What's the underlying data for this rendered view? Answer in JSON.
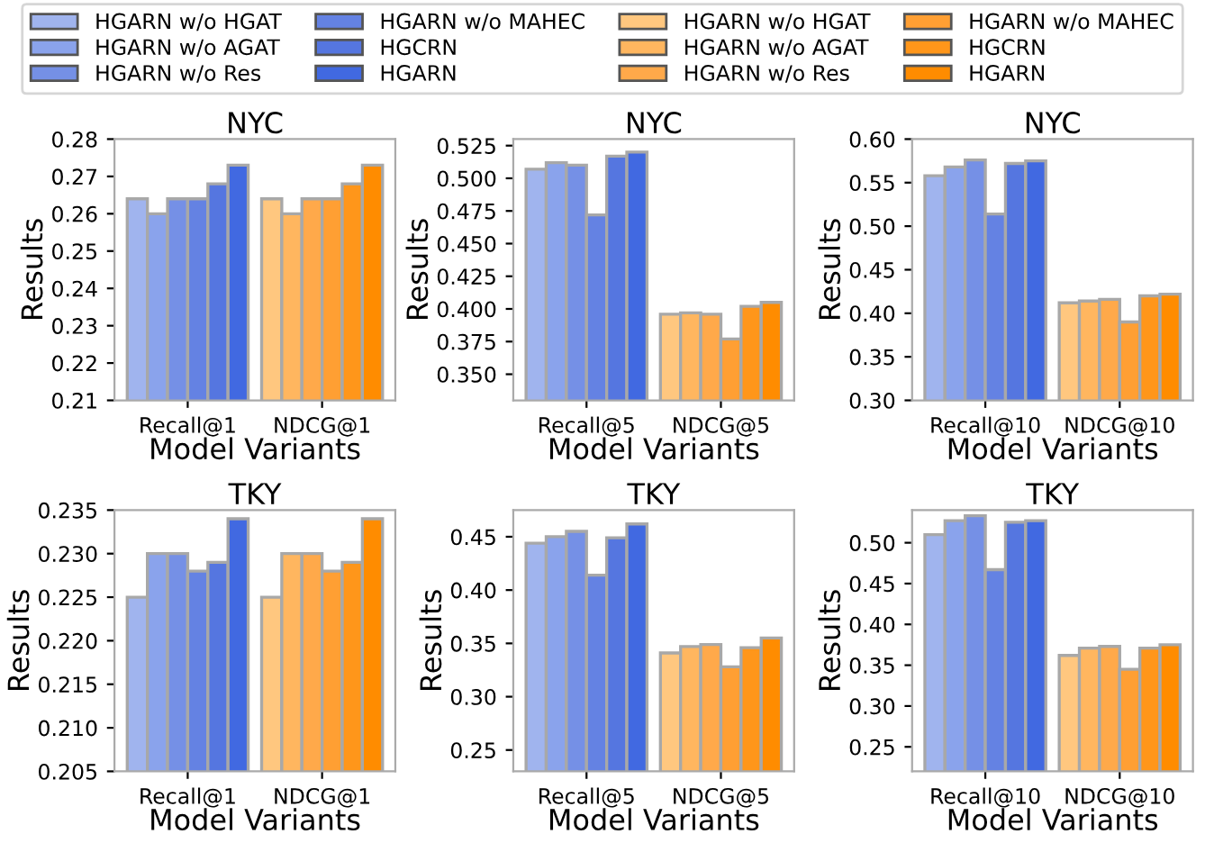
{
  "chart_data": [
    {
      "type": "bar",
      "title": "NYC",
      "xlabel": "Model Variants",
      "ylabel": "Results",
      "categories": [
        "Recall@1",
        "NDCG@1"
      ],
      "ylim": [
        0.21,
        0.28
      ],
      "yticks": [
        0.21,
        0.22,
        0.23,
        0.24,
        0.25,
        0.26,
        0.27,
        0.28
      ],
      "legend": "top",
      "grid": false,
      "series": [
        {
          "name": "HGARN w/o HGAT",
          "color": "#a0b4ee",
          "values": [
            0.264,
            null
          ]
        },
        {
          "name": "HGARN w/o AGAT",
          "color": "#8aa3ec",
          "values": [
            0.26,
            null
          ]
        },
        {
          "name": "HGARN w/o Res",
          "color": "#7590e6",
          "values": [
            0.264,
            null
          ]
        },
        {
          "name": "HGARN w/o MAHEC",
          "color": "#6482e3",
          "values": [
            0.264,
            null
          ]
        },
        {
          "name": "HGCRN",
          "color": "#5576e0",
          "values": [
            0.268,
            null
          ]
        },
        {
          "name": "HGARN",
          "color": "#4169e1",
          "values": [
            0.273,
            null
          ]
        },
        {
          "name": "HGARN w/o HGAT",
          "color": "#ffc77f",
          "values": [
            null,
            0.264
          ]
        },
        {
          "name": "HGARN w/o AGAT",
          "color": "#ffb65f",
          "values": [
            null,
            0.26
          ]
        },
        {
          "name": "HGARN w/o Res",
          "color": "#ffa94a",
          "values": [
            null,
            0.264
          ]
        },
        {
          "name": "HGARN w/o MAHEC",
          "color": "#ff9f33",
          "values": [
            null,
            0.264
          ]
        },
        {
          "name": "HGCRN",
          "color": "#ff961a",
          "values": [
            null,
            0.268
          ]
        },
        {
          "name": "HGARN",
          "color": "#ff8c00",
          "values": [
            null,
            0.273
          ]
        }
      ]
    },
    {
      "type": "bar",
      "title": "NYC",
      "xlabel": "Model Variants",
      "ylabel": "Results",
      "categories": [
        "Recall@5",
        "NDCG@5"
      ],
      "ylim": [
        0.33,
        0.53
      ],
      "yticks": [
        {
          "value": 0.35,
          "label": "0.350"
        },
        0.375,
        {
          "value": 0.4,
          "label": "0.400"
        },
        0.425,
        {
          "value": 0.45,
          "label": "0.450"
        },
        0.475,
        {
          "value": 0.5,
          "label": "0.500"
        },
        0.525
      ],
      "grid": false,
      "series": [
        {
          "color": "#a0b4ee",
          "values": [
            0.507,
            null
          ]
        },
        {
          "color": "#8aa3ec",
          "values": [
            0.512,
            null
          ]
        },
        {
          "color": "#7590e6",
          "values": [
            0.51,
            null
          ]
        },
        {
          "color": "#6482e3",
          "values": [
            0.472,
            null
          ]
        },
        {
          "color": "#5576e0",
          "values": [
            0.517,
            null
          ]
        },
        {
          "color": "#4169e1",
          "values": [
            0.52,
            null
          ]
        },
        {
          "color": "#ffc77f",
          "values": [
            null,
            0.396
          ]
        },
        {
          "color": "#ffb65f",
          "values": [
            null,
            0.397
          ]
        },
        {
          "color": "#ffa94a",
          "values": [
            null,
            0.396
          ]
        },
        {
          "color": "#ff9f33",
          "values": [
            null,
            0.377
          ]
        },
        {
          "color": "#ff961a",
          "values": [
            null,
            0.402
          ]
        },
        {
          "color": "#ff8c00",
          "values": [
            null,
            0.405
          ]
        }
      ]
    },
    {
      "type": "bar",
      "title": "NYC",
      "xlabel": "Model Variants",
      "ylabel": "Results",
      "categories": [
        "Recall@10",
        "NDCG@10"
      ],
      "ylim": [
        0.3,
        0.6
      ],
      "yticks": [
        {
          "value": 0.3,
          "label": "0.30"
        },
        0.35,
        {
          "value": 0.4,
          "label": "0.40"
        },
        0.45,
        {
          "value": 0.5,
          "label": "0.50"
        },
        0.55,
        {
          "value": 0.6,
          "label": "0.60"
        }
      ],
      "grid": false,
      "series": [
        {
          "color": "#a0b4ee",
          "values": [
            0.558,
            null
          ]
        },
        {
          "color": "#8aa3ec",
          "values": [
            0.568,
            null
          ]
        },
        {
          "color": "#7590e6",
          "values": [
            0.576,
            null
          ]
        },
        {
          "color": "#6482e3",
          "values": [
            0.514,
            null
          ]
        },
        {
          "color": "#5576e0",
          "values": [
            0.572,
            null
          ]
        },
        {
          "color": "#4169e1",
          "values": [
            0.575,
            null
          ]
        },
        {
          "color": "#ffc77f",
          "values": [
            null,
            0.412
          ]
        },
        {
          "color": "#ffb65f",
          "values": [
            null,
            0.414
          ]
        },
        {
          "color": "#ffa94a",
          "values": [
            null,
            0.416
          ]
        },
        {
          "color": "#ff9f33",
          "values": [
            null,
            0.39
          ]
        },
        {
          "color": "#ff961a",
          "values": [
            null,
            0.42
          ]
        },
        {
          "color": "#ff8c00",
          "values": [
            null,
            0.422
          ]
        }
      ]
    },
    {
      "type": "bar",
      "title": "TKY",
      "xlabel": "Model Variants",
      "ylabel": "Results",
      "categories": [
        "Recall@1",
        "NDCG@1"
      ],
      "ylim": [
        0.205,
        0.235
      ],
      "yticks": [
        0.205,
        {
          "value": 0.21,
          "label": "0.210"
        },
        0.215,
        {
          "value": 0.22,
          "label": "0.220"
        },
        0.225,
        {
          "value": 0.23,
          "label": "0.230"
        },
        0.235
      ],
      "grid": false,
      "series": [
        {
          "color": "#a0b4ee",
          "values": [
            0.225,
            null
          ]
        },
        {
          "color": "#8aa3ec",
          "values": [
            0.23,
            null
          ]
        },
        {
          "color": "#7590e6",
          "values": [
            0.23,
            null
          ]
        },
        {
          "color": "#6482e3",
          "values": [
            0.228,
            null
          ]
        },
        {
          "color": "#5576e0",
          "values": [
            0.229,
            null
          ]
        },
        {
          "color": "#4169e1",
          "values": [
            0.234,
            null
          ]
        },
        {
          "color": "#ffc77f",
          "values": [
            null,
            0.225
          ]
        },
        {
          "color": "#ffb65f",
          "values": [
            null,
            0.23
          ]
        },
        {
          "color": "#ffa94a",
          "values": [
            null,
            0.23
          ]
        },
        {
          "color": "#ff9f33",
          "values": [
            null,
            0.228
          ]
        },
        {
          "color": "#ff961a",
          "values": [
            null,
            0.229
          ]
        },
        {
          "color": "#ff8c00",
          "values": [
            null,
            0.234
          ]
        }
      ]
    },
    {
      "type": "bar",
      "title": "TKY",
      "xlabel": "Model Variants",
      "ylabel": "Results",
      "categories": [
        "Recall@5",
        "NDCG@5"
      ],
      "ylim": [
        0.23,
        0.475
      ],
      "yticks": [
        0.25,
        {
          "value": 0.3,
          "label": "0.30"
        },
        0.35,
        {
          "value": 0.4,
          "label": "0.40"
        },
        0.45
      ],
      "grid": false,
      "series": [
        {
          "color": "#a0b4ee",
          "values": [
            0.444,
            null
          ]
        },
        {
          "color": "#8aa3ec",
          "values": [
            0.45,
            null
          ]
        },
        {
          "color": "#7590e6",
          "values": [
            0.455,
            null
          ]
        },
        {
          "color": "#6482e3",
          "values": [
            0.414,
            null
          ]
        },
        {
          "color": "#5576e0",
          "values": [
            0.449,
            null
          ]
        },
        {
          "color": "#4169e1",
          "values": [
            0.462,
            null
          ]
        },
        {
          "color": "#ffc77f",
          "values": [
            null,
            0.341
          ]
        },
        {
          "color": "#ffb65f",
          "values": [
            null,
            0.347
          ]
        },
        {
          "color": "#ffa94a",
          "values": [
            null,
            0.349
          ]
        },
        {
          "color": "#ff9f33",
          "values": [
            null,
            0.328
          ]
        },
        {
          "color": "#ff961a",
          "values": [
            null,
            0.346
          ]
        },
        {
          "color": "#ff8c00",
          "values": [
            null,
            0.355
          ]
        }
      ]
    },
    {
      "type": "bar",
      "title": "TKY",
      "xlabel": "Model Variants",
      "ylabel": "Results",
      "categories": [
        "Recall@10",
        "NDCG@10"
      ],
      "ylim": [
        0.22,
        0.54
      ],
      "yticks": [
        0.25,
        {
          "value": 0.3,
          "label": "0.30"
        },
        0.35,
        {
          "value": 0.4,
          "label": "0.40"
        },
        0.45,
        {
          "value": 0.5,
          "label": "0.50"
        }
      ],
      "grid": false,
      "series": [
        {
          "color": "#a0b4ee",
          "values": [
            0.51,
            null
          ]
        },
        {
          "color": "#8aa3ec",
          "values": [
            0.527,
            null
          ]
        },
        {
          "color": "#7590e6",
          "values": [
            0.533,
            null
          ]
        },
        {
          "color": "#6482e3",
          "values": [
            0.467,
            null
          ]
        },
        {
          "color": "#5576e0",
          "values": [
            0.525,
            null
          ]
        },
        {
          "color": "#4169e1",
          "values": [
            0.527,
            null
          ]
        },
        {
          "color": "#ffc77f",
          "values": [
            null,
            0.362
          ]
        },
        {
          "color": "#ffb65f",
          "values": [
            null,
            0.371
          ]
        },
        {
          "color": "#ffa94a",
          "values": [
            null,
            0.373
          ]
        },
        {
          "color": "#ff9f33",
          "values": [
            null,
            0.345
          ]
        },
        {
          "color": "#ff961a",
          "values": [
            null,
            0.371
          ]
        },
        {
          "color": "#ff8c00",
          "values": [
            null,
            0.375
          ]
        }
      ]
    }
  ]
}
